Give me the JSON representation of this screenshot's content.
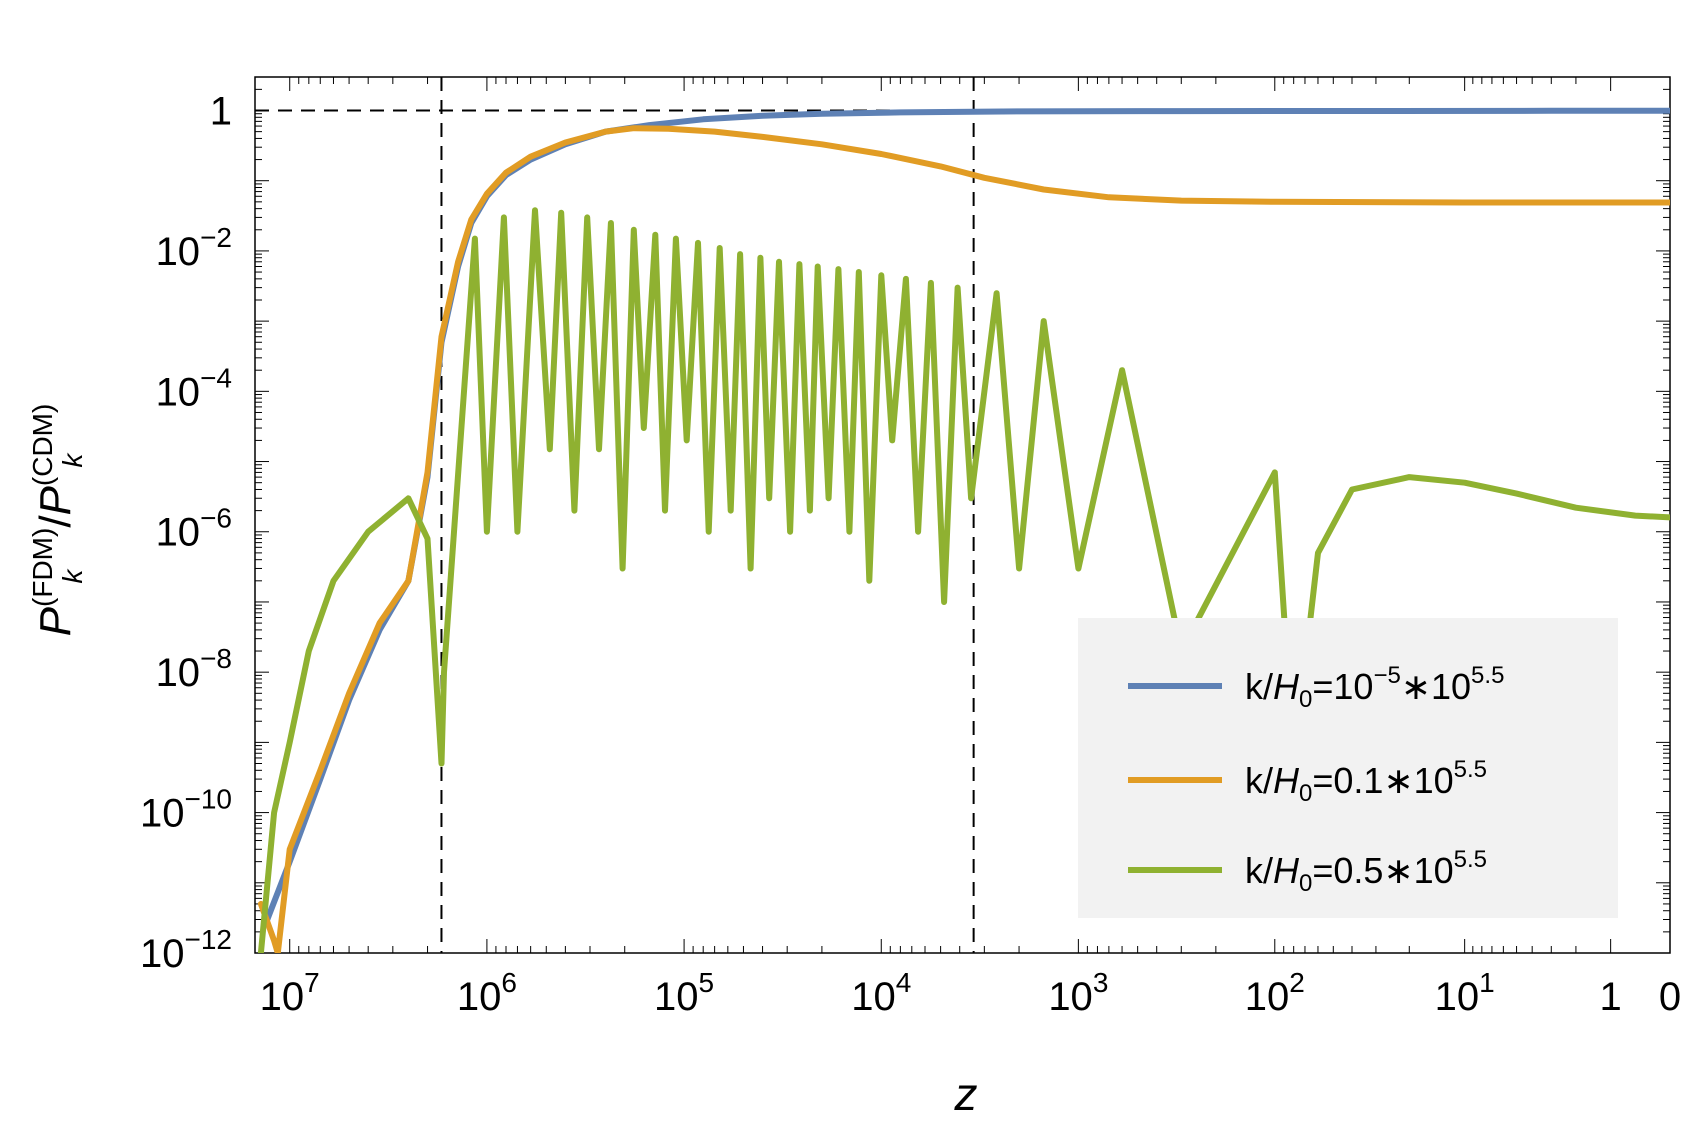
{
  "chart_data": {
    "type": "line",
    "xlabel": "z",
    "ylabel": {
      "numerator": "P",
      "numerator_sub": "k",
      "numerator_sup": "(FDM)",
      "slash": "/",
      "denominator": "P",
      "denominator_sub": "k",
      "denominator_sup": "(CDM)"
    },
    "x_scale": "log(1+z), reversed",
    "x_range": [
      15000000,
      0
    ],
    "y_scale": "log",
    "y_range": [
      1e-12,
      3
    ],
    "x_ticks": [
      {
        "value": 10000000,
        "base": "10",
        "exp": "7"
      },
      {
        "value": 1000000,
        "base": "10",
        "exp": "6"
      },
      {
        "value": 100000,
        "base": "10",
        "exp": "5"
      },
      {
        "value": 10000,
        "base": "10",
        "exp": "4"
      },
      {
        "value": 1000,
        "base": "10",
        "exp": "3"
      },
      {
        "value": 100,
        "base": "10",
        "exp": "2"
      },
      {
        "value": 10,
        "base": "10",
        "exp": "1"
      },
      {
        "value": 1,
        "base": "1",
        "exp": ""
      },
      {
        "value": 0,
        "base": "0",
        "exp": ""
      }
    ],
    "y_ticks": [
      {
        "value": 1,
        "base": "1",
        "exp": ""
      },
      {
        "value": 0.01,
        "base": "10",
        "exp": "−2"
      },
      {
        "value": 0.0001,
        "base": "10",
        "exp": "−4"
      },
      {
        "value": 1e-06,
        "base": "10",
        "exp": "−6"
      },
      {
        "value": 1e-08,
        "base": "10",
        "exp": "−8"
      },
      {
        "value": 1e-10,
        "base": "10",
        "exp": "−10"
      },
      {
        "value": 1e-12,
        "base": "10",
        "exp": "−12"
      }
    ],
    "reference_lines": [
      {
        "axis": "y",
        "value": 1,
        "style": "dashed"
      },
      {
        "axis": "x",
        "value": 1700000,
        "style": "dashed"
      },
      {
        "axis": "x",
        "value": 3400,
        "style": "dashed"
      }
    ],
    "series": [
      {
        "name": "k/H0=10^-5*10^5.5",
        "label_parts": {
          "pre": "k/",
          "var": "H",
          "sub": "0",
          "mid": "=10",
          "sup1": "−5",
          "mid2": "∗10",
          "sup2": "5.5"
        },
        "color": "#5e81b5",
        "points": [
          [
            13000000,
            3e-12
          ],
          [
            10000000,
            2e-11
          ],
          [
            7000000,
            3e-10
          ],
          [
            5000000,
            4e-09
          ],
          [
            3500000,
            4e-08
          ],
          [
            2500000,
            2e-07
          ],
          [
            2000000,
            6e-06
          ],
          [
            1700000,
            0.0005
          ],
          [
            1400000,
            0.006
          ],
          [
            1200000,
            0.025
          ],
          [
            1000000,
            0.06
          ],
          [
            800000,
            0.12
          ],
          [
            600000,
            0.2
          ],
          [
            400000,
            0.33
          ],
          [
            250000,
            0.5
          ],
          [
            150000,
            0.62
          ],
          [
            80000,
            0.75
          ],
          [
            40000,
            0.84
          ],
          [
            20000,
            0.9
          ],
          [
            8000,
            0.94
          ],
          [
            2000,
            0.97
          ],
          [
            300,
            0.98
          ],
          [
            30,
            0.985
          ],
          [
            3,
            0.99
          ],
          [
            0,
            0.99
          ]
        ]
      },
      {
        "name": "k/H0=0.1*10^5.5",
        "label_parts": {
          "pre": "k/",
          "var": "H",
          "sub": "0",
          "mid": "=0.1∗10",
          "sup1": "5.5",
          "mid2": "",
          "sup2": ""
        },
        "color": "#e19c24",
        "points": [
          [
            14000000,
            5e-12
          ],
          [
            12000000,
            1.5e-12
          ],
          [
            11500000,
            1e-12
          ],
          [
            10000000,
            3e-11
          ],
          [
            7000000,
            4e-10
          ],
          [
            5000000,
            5e-09
          ],
          [
            3500000,
            5e-08
          ],
          [
            2500000,
            2e-07
          ],
          [
            2000000,
            7e-06
          ],
          [
            1700000,
            0.0006
          ],
          [
            1400000,
            0.007
          ],
          [
            1200000,
            0.028
          ],
          [
            1000000,
            0.065
          ],
          [
            800000,
            0.13
          ],
          [
            600000,
            0.22
          ],
          [
            400000,
            0.35
          ],
          [
            250000,
            0.5
          ],
          [
            180000,
            0.56
          ],
          [
            120000,
            0.55
          ],
          [
            70000,
            0.5
          ],
          [
            40000,
            0.42
          ],
          [
            20000,
            0.33
          ],
          [
            10000,
            0.24
          ],
          [
            5000,
            0.16
          ],
          [
            3000,
            0.11
          ],
          [
            1500,
            0.075
          ],
          [
            700,
            0.058
          ],
          [
            300,
            0.052
          ],
          [
            100,
            0.05
          ],
          [
            10,
            0.049
          ],
          [
            0,
            0.049
          ]
        ]
      },
      {
        "name": "k/H0=0.5*10^5.5",
        "label_parts": {
          "pre": "k/",
          "var": "H",
          "sub": "0",
          "mid": "=0.5∗10",
          "sup1": "5.5",
          "mid2": "",
          "sup2": ""
        },
        "color": "#8fb131",
        "envelope": [
          [
            14000000,
            1e-12
          ],
          [
            12000000,
            1e-10
          ],
          [
            10000000,
            1e-09
          ],
          [
            8000000,
            2e-08
          ],
          [
            6000000,
            2e-07
          ],
          [
            4000000,
            1e-06
          ],
          [
            2500000,
            3e-06
          ],
          [
            2000000,
            8e-07
          ]
        ],
        "first_node": [
          1700000,
          5e-10
        ],
        "peaks": [
          [
            1150000,
            0.015
          ],
          [
            820000,
            0.03
          ],
          [
            570000,
            0.038
          ],
          [
            420000,
            0.035
          ],
          [
            310000,
            0.03
          ],
          [
            235000,
            0.025
          ],
          [
            180000,
            0.02
          ],
          [
            140000,
            0.017
          ],
          [
            110000,
            0.015
          ],
          [
            85000,
            0.013
          ],
          [
            66000,
            0.011
          ],
          [
            52000,
            0.009
          ],
          [
            41000,
            0.008
          ],
          [
            33000,
            0.007
          ],
          [
            26000,
            0.0065
          ],
          [
            21000,
            0.006
          ],
          [
            16500,
            0.0055
          ],
          [
            13000,
            0.005
          ],
          [
            10000,
            0.0045
          ],
          [
            7500,
            0.004
          ],
          [
            5600,
            0.0035
          ],
          [
            4100,
            0.003
          ],
          [
            2600,
            0.0025
          ],
          [
            1500,
            0.001
          ],
          [
            600,
            0.0002
          ],
          [
            100,
            7e-06
          ]
        ],
        "nodes": [
          [
            1650000,
            1e-08
          ],
          [
            1000000,
            1e-06
          ],
          [
            700000,
            1e-06
          ],
          [
            480000,
            1.5e-05
          ],
          [
            360000,
            2e-06
          ],
          [
            270000,
            1.5e-05
          ],
          [
            205000,
            3e-07
          ],
          [
            160000,
            3e-05
          ],
          [
            125000,
            2e-06
          ],
          [
            97000,
            2e-05
          ],
          [
            75000,
            1e-06
          ],
          [
            58000,
            2e-06
          ],
          [
            46000,
            3e-07
          ],
          [
            37000,
            3e-06
          ],
          [
            29000,
            1e-06
          ],
          [
            23000,
            2e-06
          ],
          [
            18500,
            3e-06
          ],
          [
            14500,
            1e-06
          ],
          [
            11500,
            2e-07
          ],
          [
            8800,
            2e-05
          ],
          [
            6500,
            1e-06
          ],
          [
            4800,
            1e-07
          ],
          [
            3500,
            3e-06
          ],
          [
            2000,
            3e-07
          ],
          [
            1000,
            3e-07
          ],
          [
            300,
            2e-08
          ],
          [
            80,
            5e-10
          ]
        ],
        "tail": [
          [
            80,
            5e-10
          ],
          [
            60,
            5e-07
          ],
          [
            40,
            4e-06
          ],
          [
            20,
            6e-06
          ],
          [
            10,
            5e-06
          ],
          [
            5,
            3.5e-06
          ],
          [
            2,
            2.2e-06
          ],
          [
            0.5,
            1.7e-06
          ],
          [
            0,
            1.6e-06
          ]
        ]
      }
    ],
    "legend_placement": "bottom-right",
    "grid": false
  }
}
